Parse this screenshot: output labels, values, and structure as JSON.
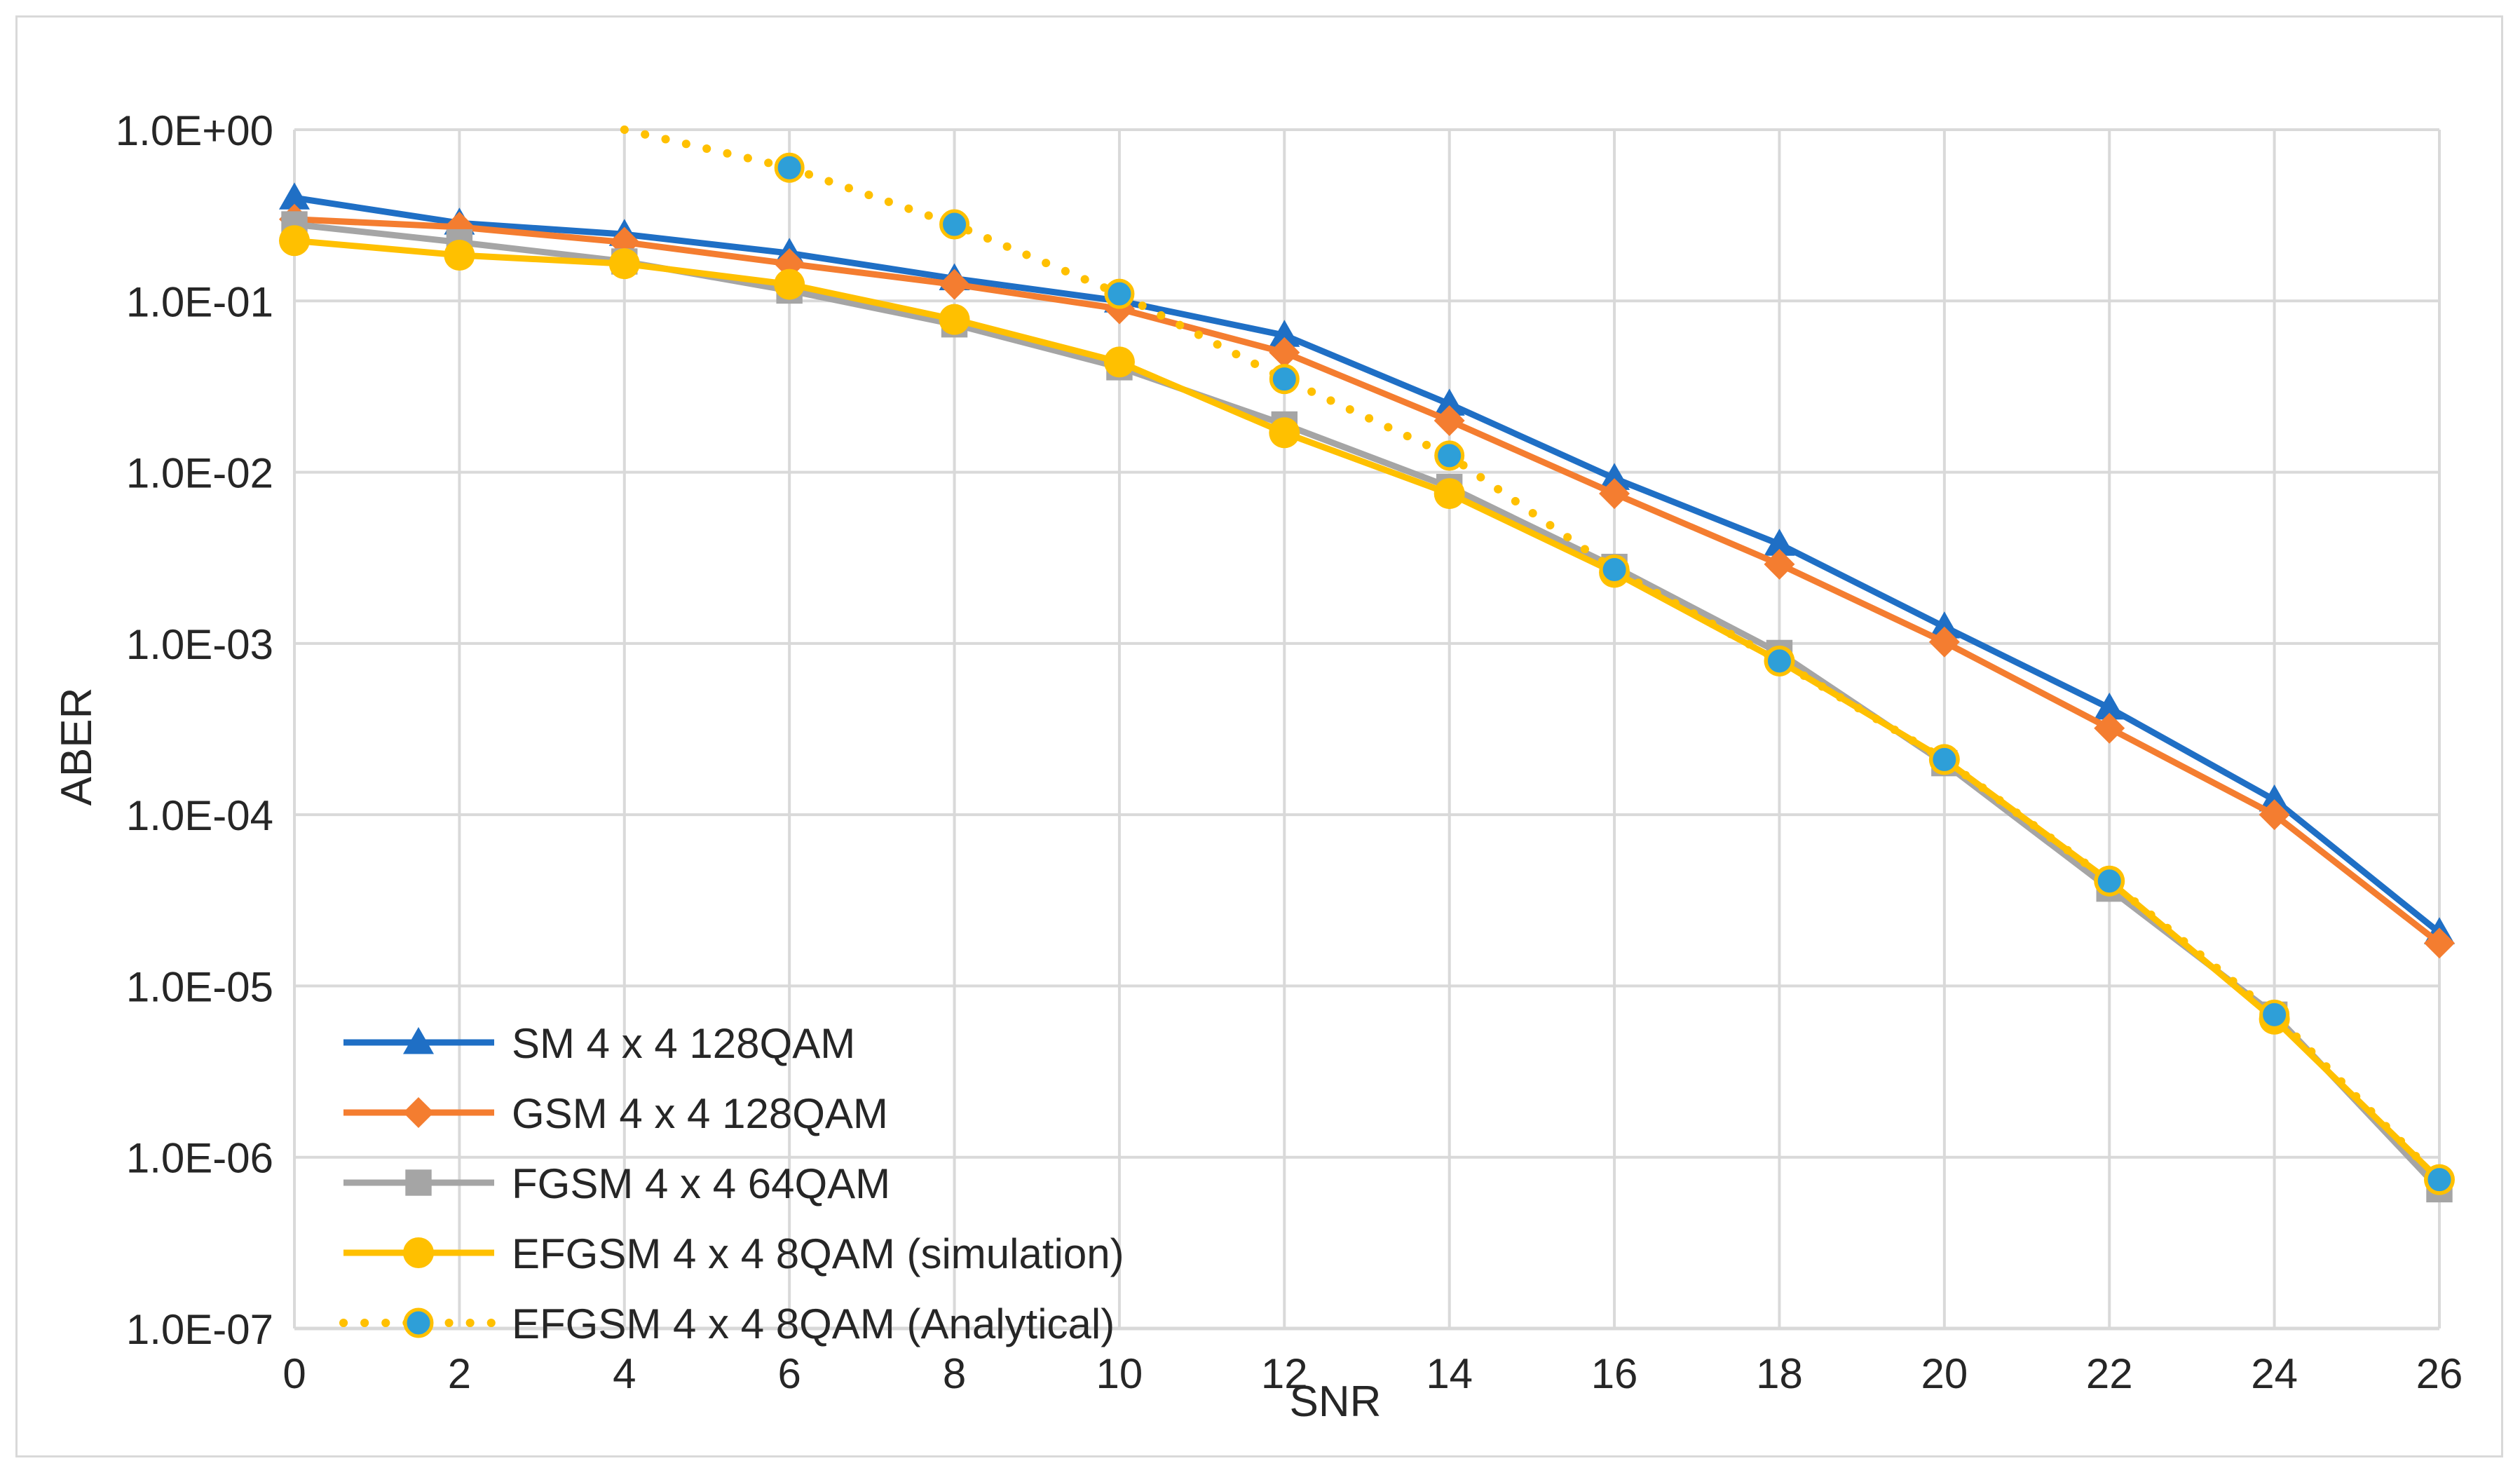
{
  "chart_data": {
    "type": "line",
    "title": "",
    "xlabel": "SNR",
    "ylabel": "ABER",
    "yscale": "log",
    "ylim": [
      1e-07,
      1
    ],
    "xlim": [
      0,
      26
    ],
    "grid": true,
    "legend_position": "bottom-left",
    "x_ticks": [
      "0",
      "2",
      "4",
      "6",
      "8",
      "10",
      "12",
      "14",
      "16",
      "18",
      "20",
      "22",
      "24",
      "26"
    ],
    "y_ticks": [
      "1.0E+00",
      "1.0E-01",
      "1.0E-02",
      "1.0E-03",
      "1.0E-04",
      "1.0E-05",
      "1.0E-06",
      "1.0E-07"
    ],
    "series": [
      {
        "name": "SM 4 x 4 128QAM",
        "color": "#1f6fc5",
        "marker": "triangle",
        "line": "solid",
        "x": [
          0,
          2,
          4,
          6,
          8,
          10,
          12,
          14,
          16,
          18,
          20,
          22,
          24,
          26
        ],
        "values": [
          0.4,
          0.285,
          0.245,
          0.19,
          0.135,
          0.1,
          0.063,
          0.025,
          0.0092,
          0.0038,
          0.00125,
          0.00042,
          0.000122,
          2.05e-05
        ]
      },
      {
        "name": "GSM 4 x 4 128QAM",
        "color": "#f47d30",
        "marker": "diamond",
        "line": "solid",
        "x": [
          0,
          2,
          4,
          6,
          8,
          10,
          12,
          14,
          16,
          18,
          20,
          22,
          24,
          26
        ],
        "values": [
          0.3,
          0.27,
          0.22,
          0.165,
          0.125,
          0.09,
          0.05,
          0.02,
          0.0075,
          0.0029,
          0.00102,
          0.00032,
          0.0001,
          1.78e-05
        ]
      },
      {
        "name": "FGSM 4 x 4 64QAM",
        "color": "#a5a5a5",
        "marker": "square",
        "line": "solid",
        "x": [
          0,
          2,
          4,
          6,
          8,
          10,
          12,
          14,
          16,
          18,
          20,
          22,
          24,
          26
        ],
        "values": [
          0.28,
          0.22,
          0.17,
          0.115,
          0.073,
          0.041,
          0.019,
          0.0082,
          0.0028,
          0.00088,
          0.0002,
          3.7e-05,
          6.8e-06,
          6.5e-07
        ]
      },
      {
        "name": "EFGSM  4 x 4 8QAM (simulation)",
        "color": "#ffc000",
        "marker": "circle",
        "line": "solid",
        "x": [
          0,
          2,
          4,
          6,
          8,
          10,
          12,
          14,
          16,
          18,
          20,
          22,
          24,
          26
        ],
        "values": [
          0.225,
          0.185,
          0.165,
          0.125,
          0.078,
          0.044,
          0.017,
          0.0075,
          0.0026,
          0.00079,
          0.00021,
          4.1e-05,
          6.4e-06,
          7.4e-07
        ]
      },
      {
        "name": "EFGSM 4 x 4 8QAM (Analytical)",
        "color": "#ffc000",
        "marker_fill": "#2e9fd8",
        "marker": "circle",
        "line": "dotted",
        "x": [
          4,
          6,
          8,
          10,
          12,
          14,
          16,
          18,
          20,
          22,
          24,
          26
        ],
        "values": [
          1.0,
          0.6,
          0.28,
          0.11,
          0.035,
          0.0125,
          0.0027,
          0.00079,
          0.00021,
          4.1e-05,
          6.8e-06,
          7.4e-07
        ]
      }
    ]
  }
}
